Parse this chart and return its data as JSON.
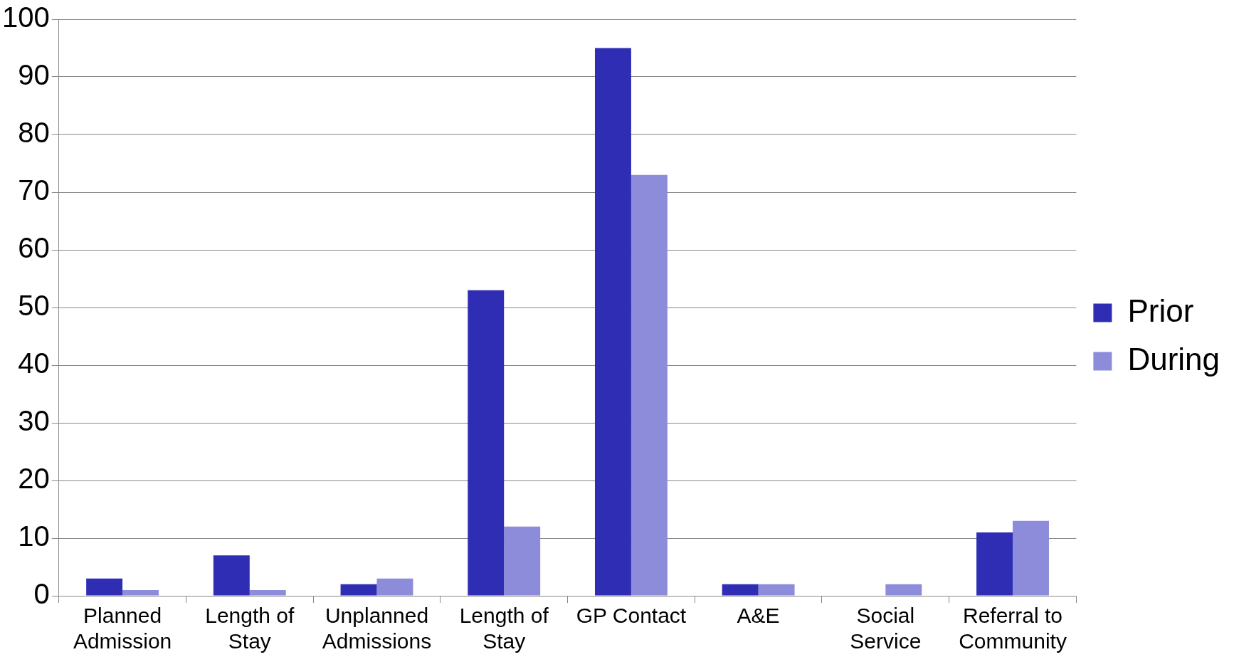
{
  "chart_data": {
    "type": "bar",
    "categories": [
      "Planned Admission",
      "Length of Stay",
      "Unplanned Admissions",
      "Length of Stay",
      "GP Contact",
      "A&E",
      "Social Service",
      "Referral to Community"
    ],
    "series": [
      {
        "name": "Prior",
        "color": "#2e2db3",
        "values": [
          3,
          7,
          2,
          53,
          95,
          2,
          0,
          11
        ]
      },
      {
        "name": "During",
        "color": "#8c8cda",
        "values": [
          1,
          1,
          3,
          12,
          73,
          2,
          2,
          13
        ]
      }
    ],
    "ylim": [
      0,
      100
    ],
    "yticks": [
      0,
      10,
      20,
      30,
      40,
      50,
      60,
      70,
      80,
      90,
      100
    ],
    "grid": "y",
    "legend": "right"
  }
}
